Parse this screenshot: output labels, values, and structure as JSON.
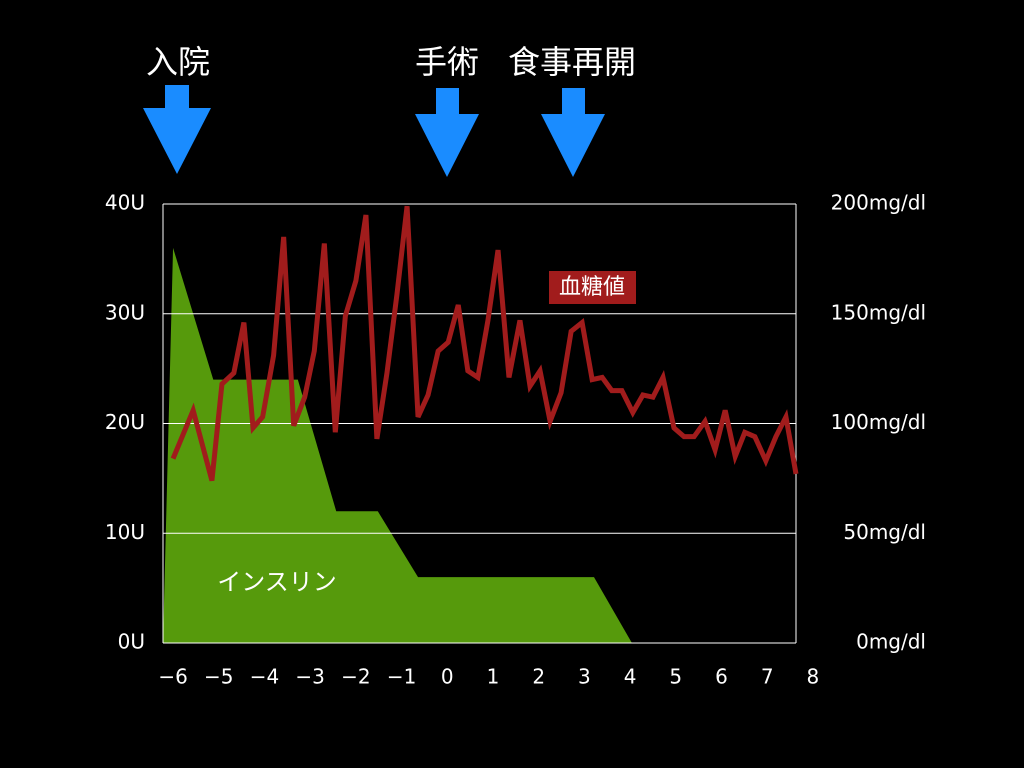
{
  "chart_data": {
    "type": "area-line",
    "annotations": [
      "入院",
      "手術",
      "食事再開"
    ],
    "xlim": [
      -6.22,
      7.63
    ],
    "xticks": [
      {
        "value": -6,
        "label": "−6"
      },
      {
        "value": -5,
        "label": "−5"
      },
      {
        "value": -4,
        "label": "−4"
      },
      {
        "value": -3,
        "label": "−3"
      },
      {
        "value": -2,
        "label": "−2"
      },
      {
        "value": -1,
        "label": "−1"
      },
      0,
      1,
      2,
      3,
      4,
      5,
      6,
      7,
      8
    ],
    "ylim": [
      0,
      40
    ],
    "yticks": [
      {
        "value": 0,
        "label": "0U"
      },
      {
        "value": 10,
        "label": "10U"
      },
      {
        "value": 20,
        "label": "20U"
      },
      {
        "value": 30,
        "label": "30U"
      },
      {
        "value": 40,
        "label": "40U"
      }
    ],
    "y2lim": [
      0,
      200
    ],
    "y2ticks": [
      {
        "value": 0,
        "label": "0mg/dl"
      },
      {
        "value": 50,
        "label": "50mg/dl"
      },
      {
        "value": 100,
        "label": "100mg/dl"
      },
      {
        "value": 150,
        "label": "150mg/dl"
      },
      {
        "value": 200,
        "label": "200mg/dl"
      }
    ],
    "grid": true,
    "series": [
      {
        "name": "インスリン",
        "type": "area",
        "color": "#569a0c",
        "x": [
          -6.22,
          -6,
          -5.12,
          -3.27,
          -2.43,
          -1.52,
          -0.64,
          3.21,
          4.04
        ],
        "values": [
          0,
          36,
          24,
          24,
          12,
          12,
          6,
          6,
          0
        ]
      },
      {
        "name": "血糖値",
        "type": "line",
        "color": "#a11c1c",
        "axis": "y2",
        "x": [
          -6,
          -5.56,
          -5.15,
          -4.93,
          -4.67,
          -4.45,
          -4.25,
          -4.04,
          -3.8,
          -3.58,
          -3.36,
          -3.12,
          -2.91,
          -2.69,
          -2.45,
          -2.23,
          -2,
          -1.78,
          -1.54,
          -1.32,
          -1.1,
          -0.88,
          -0.64,
          -0.42,
          -0.2,
          0.02,
          0.24,
          0.45,
          0.67,
          0.89,
          1.11,
          1.35,
          1.59,
          1.81,
          2.03,
          2.25,
          2.49,
          2.71,
          2.95,
          3.17,
          3.39,
          3.6,
          3.82,
          4.06,
          4.28,
          4.5,
          4.72,
          4.96,
          5.18,
          5.4,
          5.64,
          5.86,
          6.08,
          6.3,
          6.51,
          6.73,
          6.97,
          7.19,
          7.41,
          7.63
        ],
        "values": [
          84,
          106,
          74,
          118,
          123,
          146,
          98,
          103,
          131,
          185,
          99,
          112,
          133,
          182,
          96,
          149,
          165,
          195,
          93,
          123,
          159,
          199,
          103,
          113,
          133,
          137,
          154,
          124,
          121,
          147,
          179,
          121,
          147,
          117,
          124,
          101,
          114,
          142,
          146,
          120,
          121,
          115,
          115,
          105,
          113,
          112,
          121,
          98,
          94,
          94,
          101,
          88,
          106,
          85,
          96,
          94,
          83,
          94,
          103,
          77
        ]
      }
    ]
  }
}
